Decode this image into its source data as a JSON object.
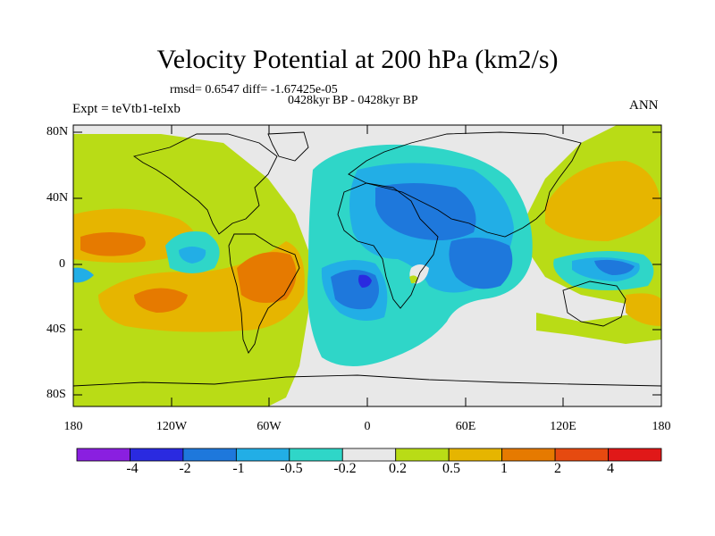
{
  "title": "Velocity Potential at 200 hPa (km2/s)",
  "subtitle": {
    "rmsd": "rmsd= 0.6547 diff= -1.67425e-05",
    "period": "0428kyr BP - 0428kyr BP",
    "experiment": "Expt = teVtb1-teIxb",
    "season": "ANN"
  },
  "axes": {
    "lat_ticks": [
      "80N",
      "40N",
      "0",
      "40S",
      "80S"
    ],
    "lon_ticks": [
      "180",
      "120W",
      "60W",
      "0",
      "60E",
      "120E",
      "180"
    ]
  },
  "colorbar": {
    "labels": [
      "-4",
      "-2",
      "-1",
      "-0.5",
      "-0.2",
      "0.2",
      "0.5",
      "1",
      "2",
      "4"
    ],
    "colors": [
      "#8a1fe0",
      "#2a2ae0",
      "#1e78dc",
      "#22aee6",
      "#2fd6c8",
      "#e8e8e8",
      "#b9dc16",
      "#e6b500",
      "#e67a00",
      "#e64a10",
      "#e01818"
    ]
  },
  "map_colors": {
    "neutral": "#e8e8e8",
    "pos_weak": "#b9dc16",
    "pos_mid": "#e6b500",
    "pos_strong": "#e67a00",
    "neg_weak": "#2fd6c8",
    "neg_mid": "#22aee6",
    "neg_strong": "#1e78dc",
    "neg_max": "#2a2ae0"
  }
}
